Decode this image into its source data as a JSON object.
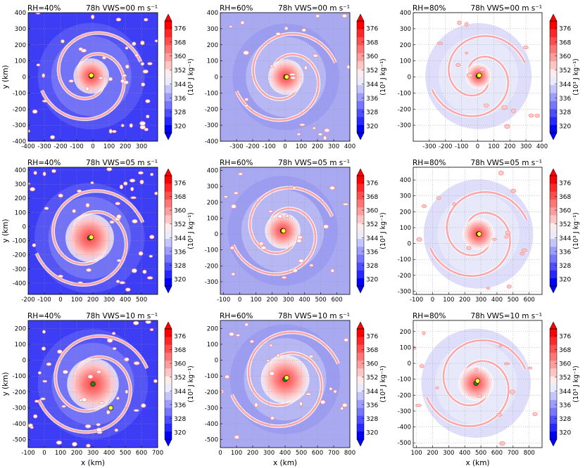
{
  "figure": {
    "time_label": "78h",
    "time_color": "#dd0000",
    "x_axis_label": "x (km)",
    "y_axis_label": "y (km)",
    "colorbar_label": "(10³ J kg⁻¹)",
    "colorbar_ticks": [
      "320",
      "328",
      "336",
      "344",
      "352",
      "360",
      "368",
      "376"
    ]
  },
  "chart_data": [
    {
      "type": "heatmap",
      "rh_label": "RH=40%",
      "vws_label": "VWS=00 m s⁻¹",
      "xlim": [
        -400,
        400
      ],
      "ylim": [
        -400,
        400
      ],
      "xticks": [
        -400,
        -300,
        -200,
        -100,
        0,
        100,
        200,
        300
      ],
      "yticks": [
        -400,
        -300,
        -200,
        -100,
        0,
        100,
        200,
        300,
        400
      ],
      "center_yellow": [
        -10,
        10
      ],
      "center_green": [
        -10,
        5
      ],
      "ring_radius": 330,
      "core_radius": 110
    },
    {
      "type": "heatmap",
      "rh_label": "RH=60%",
      "vws_label": "VWS=00 m s⁻¹",
      "xlim": [
        -400,
        400
      ],
      "ylim": [
        -400,
        400
      ],
      "xticks": [
        -300,
        -200,
        -100,
        0,
        100,
        200,
        300,
        400
      ],
      "yticks": [
        -400,
        -300,
        -200,
        -100,
        0,
        100,
        200,
        300,
        400
      ],
      "center_yellow": [
        10,
        0
      ],
      "center_green": [
        5,
        0
      ],
      "ring_radius": 330,
      "core_radius": 110
    },
    {
      "type": "heatmap",
      "rh_label": "RH=80%",
      "vws_label": "VWS=00 m s⁻¹",
      "xlim": [
        -400,
        400
      ],
      "ylim": [
        -400,
        400
      ],
      "xticks": [
        -300,
        -200,
        -100,
        0,
        100,
        200,
        300,
        400
      ],
      "yticks": [
        -300,
        -200,
        -100,
        0,
        100,
        200,
        300,
        400
      ],
      "center_yellow": [
        10,
        10
      ],
      "center_green": [
        5,
        5
      ],
      "ring_radius": 330,
      "core_radius": 80
    },
    {
      "type": "heatmap",
      "rh_label": "RH=40%",
      "vws_label": "VWS=05 m s⁻¹",
      "xlim": [
        -200,
        600
      ],
      "ylim": [
        -480,
        420
      ],
      "xticks": [
        -200,
        -100,
        0,
        100,
        200,
        300,
        400,
        500
      ],
      "yticks": [
        -400,
        -300,
        -200,
        -100,
        0,
        100,
        200,
        300,
        400
      ],
      "center_yellow": [
        190,
        -75
      ],
      "center_green": [
        180,
        -80
      ],
      "ring_radius": 340,
      "core_radius": 150
    },
    {
      "type": "heatmap",
      "rh_label": "RH=60%",
      "vws_label": "VWS=05 m s⁻¹",
      "xlim": [
        -120,
        680
      ],
      "ylim": [
        -380,
        420
      ],
      "xticks": [
        -100,
        0,
        100,
        200,
        300,
        400,
        500,
        600
      ],
      "yticks": [
        -300,
        -200,
        -100,
        0,
        100,
        200,
        300,
        400
      ],
      "center_yellow": [
        270,
        20
      ],
      "center_green": [
        265,
        20
      ],
      "ring_radius": 340,
      "core_radius": 110
    },
    {
      "type": "heatmap",
      "rh_label": "RH=80%",
      "vws_label": "VWS=05 m s⁻¹",
      "xlim": [
        -120,
        680
      ],
      "ylim": [
        -320,
        480
      ],
      "xticks": [
        -100,
        0,
        100,
        200,
        300,
        400,
        500,
        600
      ],
      "yticks": [
        -300,
        -200,
        -100,
        0,
        100,
        200,
        300,
        400
      ],
      "center_yellow": [
        290,
        60
      ],
      "center_green": [
        285,
        60
      ],
      "ring_radius": 340,
      "core_radius": 100
    },
    {
      "type": "heatmap",
      "rh_label": "RH=40%",
      "vws_label": "VWS=10 m s⁻¹",
      "xlim": [
        -100,
        700
      ],
      "ylim": [
        -550,
        250
      ],
      "xticks": [
        -100,
        0,
        100,
        200,
        300,
        400,
        500,
        600,
        700
      ],
      "yticks": [
        -500,
        -400,
        -300,
        -200,
        -100,
        0,
        100,
        200
      ],
      "center_yellow": [
        410,
        -300
      ],
      "center_green": [
        300,
        -150
      ],
      "ring_radius": 340,
      "core_radius": 160
    },
    {
      "type": "heatmap",
      "rh_label": "RH=60%",
      "vws_label": "VWS=10 m s⁻¹",
      "xlim": [
        0,
        800
      ],
      "ylim": [
        -550,
        250
      ],
      "xticks": [
        0,
        100,
        200,
        300,
        400,
        500,
        600,
        700,
        800
      ],
      "yticks": [
        -500,
        -400,
        -300,
        -200,
        -100,
        0,
        100,
        200
      ],
      "center_yellow": [
        410,
        -110
      ],
      "center_green": [
        400,
        -120
      ],
      "ring_radius": 340,
      "core_radius": 150
    },
    {
      "type": "heatmap",
      "rh_label": "RH=80%",
      "vws_label": "VWS=10 m s⁻¹",
      "xlim": [
        80,
        880
      ],
      "ylim": [
        -530,
        270
      ],
      "xticks": [
        100,
        200,
        300,
        400,
        500,
        600,
        700,
        800
      ],
      "yticks": [
        -500,
        -400,
        -300,
        -200,
        -100,
        0,
        100,
        200
      ],
      "center_yellow": [
        480,
        -110
      ],
      "center_green": [
        470,
        -125
      ],
      "ring_radius": 340,
      "core_radius": 110
    }
  ]
}
